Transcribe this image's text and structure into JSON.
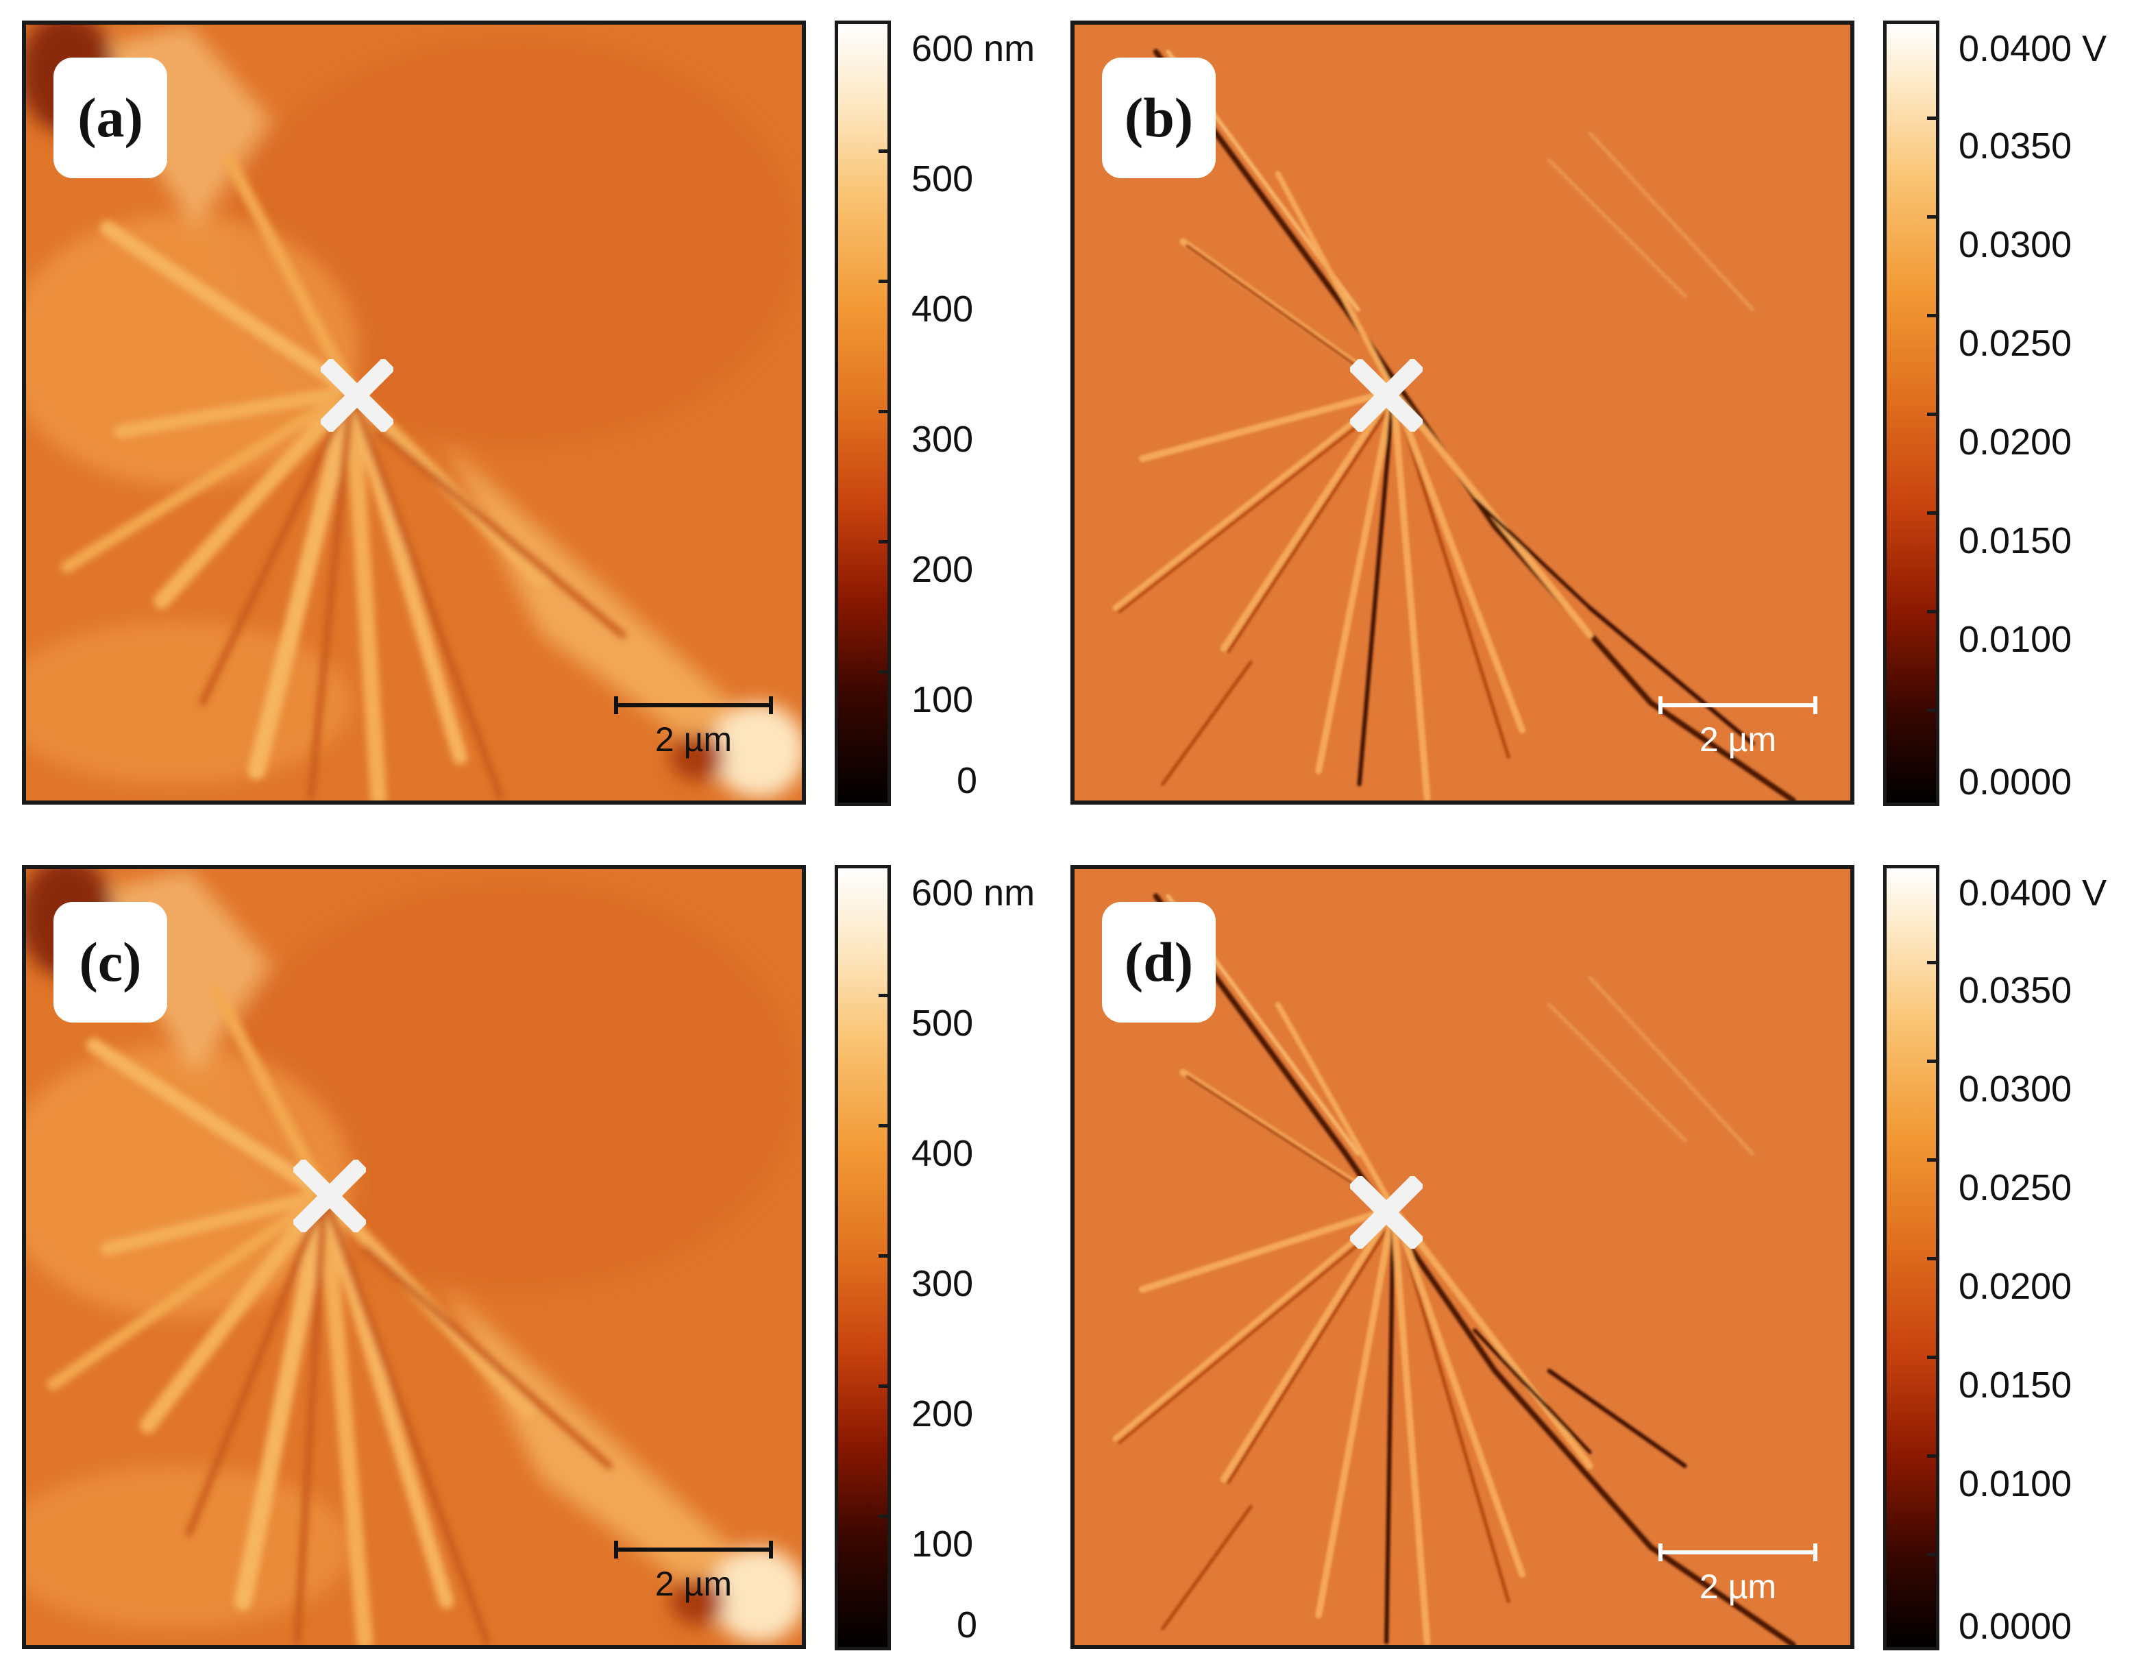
{
  "panels": [
    {
      "label": "(a)",
      "type": "height",
      "scalebar": "2 µm"
    },
    {
      "label": "(b)",
      "type": "potential",
      "scalebar": "2 µm"
    },
    {
      "label": "(c)",
      "type": "height",
      "scalebar": "2 µm"
    },
    {
      "label": "(d)",
      "type": "potential",
      "scalebar": "2 µm"
    }
  ],
  "colorbar_height": {
    "ticks": [
      "600 nm",
      "500",
      "400",
      "300",
      "200",
      "100",
      "0"
    ],
    "range": [
      0,
      600
    ],
    "unit": "nm"
  },
  "colorbar_potential": {
    "ticks": [
      "0.0400 V",
      "0.0350",
      "0.0300",
      "0.0250",
      "0.0200",
      "0.0150",
      "0.0100",
      "0.0000"
    ],
    "range": [
      0.0,
      0.04
    ],
    "unit": "V"
  },
  "colors": {
    "height_base": "#e0762a",
    "potential_base": "#e07a36",
    "marker": "#f2f2f2"
  }
}
